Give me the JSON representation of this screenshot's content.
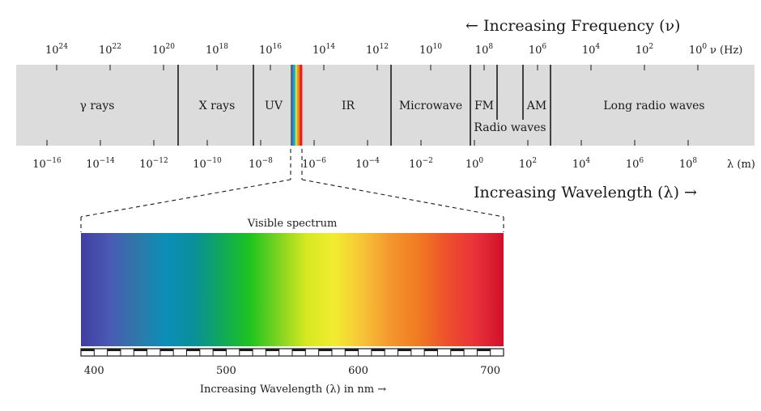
{
  "frequency_axis": {
    "direction_label": "← Increasing Frequency (ν)",
    "unit": "ν (Hz)",
    "ticks": [
      {
        "base": "10",
        "exp": "24"
      },
      {
        "base": "10",
        "exp": "22"
      },
      {
        "base": "10",
        "exp": "20"
      },
      {
        "base": "10",
        "exp": "18"
      },
      {
        "base": "10",
        "exp": "16"
      },
      {
        "base": "10",
        "exp": "14"
      },
      {
        "base": "10",
        "exp": "12"
      },
      {
        "base": "10",
        "exp": "10"
      },
      {
        "base": "10",
        "exp": "8"
      },
      {
        "base": "10",
        "exp": "6"
      },
      {
        "base": "10",
        "exp": "4"
      },
      {
        "base": "10",
        "exp": "2"
      },
      {
        "base": "10",
        "exp": "0"
      }
    ]
  },
  "wavelength_axis": {
    "direction_label": "Increasing Wavelength (λ) →",
    "unit": "λ (m)",
    "ticks": [
      {
        "base": "10",
        "exp": "−16"
      },
      {
        "base": "10",
        "exp": "−14"
      },
      {
        "base": "10",
        "exp": "−12"
      },
      {
        "base": "10",
        "exp": "−10"
      },
      {
        "base": "10",
        "exp": "−8"
      },
      {
        "base": "10",
        "exp": "−6"
      },
      {
        "base": "10",
        "exp": "−4"
      },
      {
        "base": "10",
        "exp": "−2"
      },
      {
        "base": "10",
        "exp": "0"
      },
      {
        "base": "10",
        "exp": "2"
      },
      {
        "base": "10",
        "exp": "4"
      },
      {
        "base": "10",
        "exp": "6"
      },
      {
        "base": "10",
        "exp": "8"
      }
    ]
  },
  "bands": {
    "gamma": "γ rays",
    "xray": "X rays",
    "uv": "UV",
    "ir": "IR",
    "microwave": "Microwave",
    "fm": "FM",
    "am": "AM",
    "radio": "Radio waves",
    "long_radio": "Long radio waves"
  },
  "visible": {
    "title": "Visible spectrum",
    "axis_label": "Increasing Wavelength (λ) in nm →",
    "ticks": [
      "400",
      "500",
      "600",
      "700"
    ],
    "range_nm": [
      390,
      710
    ],
    "gradient_colors": [
      "#3f3ea0",
      "#4a5ab4",
      "#2e78a8",
      "#0a8fb8",
      "#0a8f9a",
      "#10a85a",
      "#1ec31e",
      "#7ed321",
      "#d6e820",
      "#f2ec30",
      "#f7c238",
      "#f4962e",
      "#f07a22",
      "#ee4f2c",
      "#e8323a",
      "#d0102a"
    ]
  },
  "colors": {
    "band_fill": "#dcdcdc",
    "line": "#1a1a1a",
    "mini_spectrum": [
      "#3a6ab0",
      "#1aa4c0",
      "#f2d020",
      "#f08020",
      "#e02020"
    ]
  }
}
